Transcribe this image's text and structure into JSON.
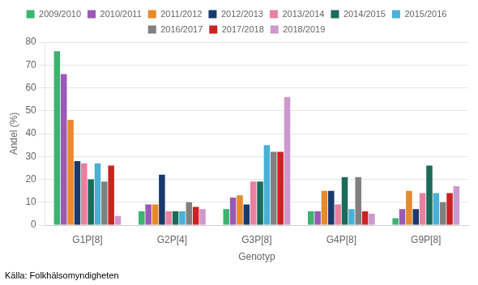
{
  "chart_data": {
    "type": "bar",
    "categories": [
      "G1P[8]",
      "G2P[4]",
      "G3P[8]",
      "G4P[8]",
      "G9P[8]"
    ],
    "series": [
      {
        "name": "2009/2010",
        "color": "#3cb371",
        "values": [
          76,
          6,
          7,
          6,
          3
        ]
      },
      {
        "name": "2010/2011",
        "color": "#9b59b6",
        "values": [
          66,
          9,
          12,
          6,
          7
        ]
      },
      {
        "name": "2011/2012",
        "color": "#e8892b",
        "values": [
          46,
          9,
          13,
          15,
          15
        ]
      },
      {
        "name": "2012/2013",
        "color": "#1a3a6b",
        "values": [
          28,
          22,
          9,
          15,
          7
        ]
      },
      {
        "name": "2013/2014",
        "color": "#e880a0",
        "values": [
          27,
          6,
          19,
          9,
          14
        ]
      },
      {
        "name": "2014/2015",
        "color": "#1a6b5a",
        "values": [
          20,
          6,
          19,
          21,
          26
        ]
      },
      {
        "name": "2015/2016",
        "color": "#4ab0d4",
        "values": [
          27,
          6,
          35,
          7,
          14
        ]
      },
      {
        "name": "2016/2017",
        "color": "#808080",
        "values": [
          19,
          10,
          32,
          21,
          10
        ]
      },
      {
        "name": "2017/2018",
        "color": "#cc2222",
        "values": [
          26,
          8,
          32,
          6,
          14
        ]
      },
      {
        "name": "2018/2019",
        "color": "#cc99cc",
        "values": [
          4,
          7,
          56,
          5,
          17
        ]
      }
    ],
    "xlabel": "Genotyp",
    "ylabel": "Andel (%)",
    "ylim": [
      0,
      80
    ],
    "yticks": [
      0,
      10,
      20,
      30,
      40,
      50,
      60,
      70,
      80
    ],
    "grid": "y",
    "legend": "top",
    "annotations": [
      "Källa: Folkhälsomyndigheten"
    ]
  }
}
